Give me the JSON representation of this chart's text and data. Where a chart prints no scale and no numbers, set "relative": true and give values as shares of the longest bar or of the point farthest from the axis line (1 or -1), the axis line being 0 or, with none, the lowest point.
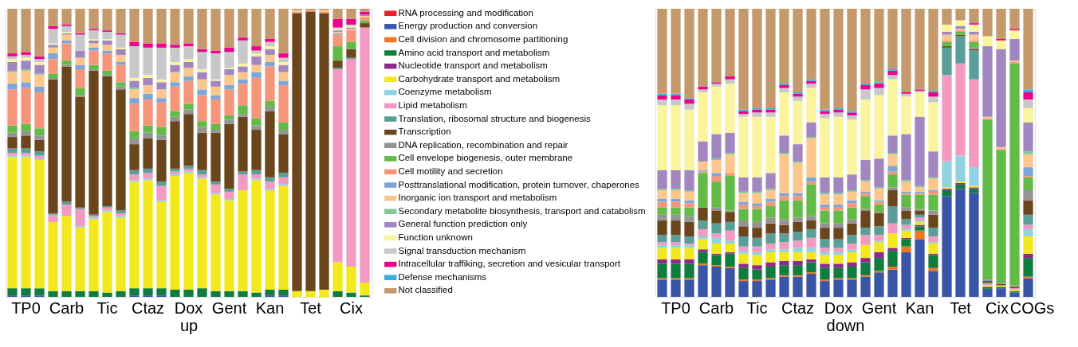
{
  "chart_data": [
    {
      "type": "bar",
      "stacked": true,
      "relative": true,
      "xlabel": "up",
      "legend": "right",
      "categories": [
        null,
        "TP0",
        null,
        null,
        "Carb",
        null,
        null,
        "Tic",
        null,
        null,
        "Ctaz",
        null,
        null,
        "Dox",
        null,
        null,
        "Gent",
        null,
        null,
        "Kan",
        null,
        null,
        "Tet",
        null,
        null,
        "Cix",
        null
      ],
      "series": [
        {
          "name": "RNA processing and modification",
          "color": "#e8202a",
          "values": [
            0,
            0,
            0,
            0,
            0,
            0,
            0,
            0,
            0,
            0,
            0,
            0,
            0,
            0,
            0,
            0,
            0,
            0,
            0,
            0,
            0,
            0,
            0,
            0,
            0,
            0,
            0
          ]
        },
        {
          "name": "Energy production and conversion",
          "color": "#3b55a6",
          "values": [
            0.005,
            0.005,
            0.005,
            0,
            0,
            0,
            0,
            0,
            0,
            0.005,
            0.005,
            0.005,
            0,
            0,
            0,
            0,
            0,
            0,
            0,
            0.005,
            0.005,
            0,
            0,
            0,
            0,
            0,
            0
          ]
        },
        {
          "name": "Cell division and chromosome partitioning",
          "color": "#f07622",
          "values": [
            0,
            0,
            0,
            0,
            0,
            0,
            0,
            0,
            0,
            0,
            0,
            0,
            0,
            0,
            0,
            0,
            0,
            0,
            0,
            0,
            0,
            0,
            0,
            0,
            0,
            0,
            0
          ]
        },
        {
          "name": "Amino acid transport and metabolism",
          "color": "#0f7d3e",
          "values": [
            0.025,
            0.025,
            0.025,
            0.02,
            0.02,
            0.02,
            0.02,
            0.015,
            0.02,
            0.025,
            0.025,
            0.025,
            0.025,
            0.025,
            0.03,
            0.02,
            0.02,
            0.02,
            0.015,
            0.02,
            0.02,
            0,
            0,
            0,
            0.02,
            0.015,
            0.005
          ]
        },
        {
          "name": "Nucleotide transport and metabolism",
          "color": "#8e2a8b",
          "values": [
            0,
            0,
            0,
            0,
            0,
            0,
            0,
            0,
            0,
            0,
            0,
            0,
            0,
            0,
            0,
            0,
            0,
            0,
            0,
            0,
            0,
            0,
            0,
            0,
            0,
            0,
            0
          ]
        },
        {
          "name": "Carbohydrate transport and metabolism",
          "color": "#f2e81d",
          "values": [
            0.455,
            0.455,
            0.445,
            0.24,
            0.26,
            0.22,
            0.25,
            0.28,
            0.255,
            0.37,
            0.375,
            0.3,
            0.395,
            0.405,
            0.38,
            0.335,
            0.315,
            0.35,
            0.39,
            0.345,
            0.36,
            0.02,
            0.02,
            0.025,
            0.1,
            0.09,
            0.045
          ]
        },
        {
          "name": "Coenzyme metabolism",
          "color": "#8dd3e0",
          "values": [
            0.005,
            0.005,
            0.005,
            0,
            0,
            0.005,
            0.005,
            0.005,
            0.005,
            0.005,
            0.005,
            0.005,
            0.005,
            0.005,
            0.005,
            0.005,
            0.005,
            0,
            0.005,
            0.005,
            0.005,
            0,
            0,
            0,
            0,
            0,
            0
          ]
        },
        {
          "name": "Lipid metabolism",
          "color": "#f39ac3",
          "values": [
            0.01,
            0.01,
            0.01,
            0.025,
            0.04,
            0.06,
            0.005,
            0.01,
            0.01,
            0.02,
            0.02,
            0.05,
            0.01,
            0.01,
            0.01,
            0.03,
            0.025,
            0.055,
            0.015,
            0.025,
            0.025,
            0,
            0,
            0,
            0.67,
            0.72,
            0.885
          ]
        },
        {
          "name": "Translation, ribosomal structure and biogenesis",
          "color": "#5a9e9a",
          "values": [
            0.015,
            0.015,
            0.015,
            0.005,
            0.01,
            0.005,
            0.005,
            0.005,
            0.01,
            0.015,
            0.015,
            0.015,
            0.01,
            0.01,
            0.015,
            0.01,
            0.01,
            0.01,
            0.015,
            0.015,
            0.015,
            0,
            0,
            0,
            0.005,
            0.005,
            0
          ]
        },
        {
          "name": "Transcription",
          "color": "#6b451b",
          "values": [
            0.04,
            0.045,
            0.04,
            0.465,
            0.47,
            0.385,
            0.5,
            0.45,
            0.42,
            0.09,
            0.105,
            0.145,
            0.165,
            0.18,
            0.13,
            0.17,
            0.225,
            0.19,
            0.14,
            0.23,
            0.135,
            0.965,
            0.97,
            0.96,
            0.025,
            0.03,
            0.015
          ]
        },
        {
          "name": "DNA replication, recombination and repair",
          "color": "#949494",
          "values": [
            0.015,
            0.015,
            0.015,
            0.005,
            0.005,
            0.005,
            0.005,
            0.005,
            0.01,
            0.02,
            0.02,
            0.015,
            0.015,
            0.015,
            0.02,
            0.01,
            0.015,
            0.01,
            0.015,
            0.015,
            0.015,
            0,
            0,
            0,
            0,
            0,
            0
          ]
        },
        {
          "name": "Cell envelope biogenesis, outer membrane",
          "color": "#63bb47",
          "values": [
            0.025,
            0.025,
            0.025,
            0.015,
            0.015,
            0.025,
            0.015,
            0.015,
            0.015,
            0.025,
            0.025,
            0.03,
            0.02,
            0.02,
            0.02,
            0.02,
            0.015,
            0.03,
            0.025,
            0.02,
            0.025,
            0,
            0,
            0,
            0.05,
            0.025,
            0.01
          ]
        },
        {
          "name": "Cell motility and secretion",
          "color": "#f5967a",
          "values": [
            0.125,
            0.125,
            0.125,
            0.05,
            0.06,
            0.065,
            0.05,
            0.06,
            0.06,
            0.095,
            0.09,
            0.085,
            0.085,
            0.08,
            0.09,
            0.085,
            0.09,
            0.075,
            0.14,
            0.12,
            0.13,
            0.005,
            0.005,
            0.005,
            0.04,
            0.04,
            0.01
          ]
        },
        {
          "name": "Posttranslational modification, protein turnover, chaperones",
          "color": "#7ca6da",
          "values": [
            0.02,
            0.02,
            0.02,
            0.02,
            0.01,
            0.015,
            0.01,
            0.01,
            0.01,
            0.02,
            0.02,
            0.015,
            0.015,
            0.015,
            0.02,
            0.015,
            0.015,
            0.015,
            0.02,
            0.015,
            0.015,
            0,
            0,
            0,
            0.005,
            0,
            0
          ]
        },
        {
          "name": "Inorganic ion transport and metabolism",
          "color": "#fdc68a",
          "values": [
            0.04,
            0.04,
            0.04,
            0.02,
            0.02,
            0.025,
            0.015,
            0.02,
            0.025,
            0.03,
            0.03,
            0.03,
            0.035,
            0.03,
            0.035,
            0.03,
            0.035,
            0.025,
            0.025,
            0.025,
            0.03,
            0.005,
            0,
            0.005,
            0.005,
            0.005,
            0.005
          ]
        },
        {
          "name": "Secondary metabolite biosynthesis, transport and catabolism",
          "color": "#82c99a",
          "values": [
            0.005,
            0.005,
            0.005,
            0,
            0,
            0,
            0,
            0,
            0,
            0.005,
            0,
            0,
            0,
            0,
            0,
            0,
            0,
            0,
            0,
            0,
            0,
            0,
            0,
            0,
            0,
            0,
            0
          ]
        },
        {
          "name": "General function prediction only",
          "color": "#a186c0",
          "values": [
            0.03,
            0.03,
            0.03,
            0.01,
            0.005,
            0.025,
            0.01,
            0.015,
            0.02,
            0.025,
            0.025,
            0.025,
            0.025,
            0.02,
            0.025,
            0.02,
            0.02,
            0.02,
            0.03,
            0.02,
            0.025,
            0,
            0,
            0,
            0.005,
            0.005,
            0.005
          ]
        },
        {
          "name": "Function unknown",
          "color": "#f9f49d",
          "values": [
            0.01,
            0.01,
            0.01,
            0.005,
            0.005,
            0,
            0.005,
            0.005,
            0.005,
            0.01,
            0.01,
            0.01,
            0.01,
            0.01,
            0.01,
            0.005,
            0.005,
            0.01,
            0.01,
            0.01,
            0.01,
            0,
            0,
            0,
            0.005,
            0.005,
            0
          ]
        },
        {
          "name": "Signal transduction mechanism",
          "color": "#c8c8ca",
          "values": [
            0.01,
            0.01,
            0.01,
            0.05,
            0.02,
            0.055,
            0.03,
            0.025,
            0.045,
            0.11,
            0.095,
            0.11,
            0.05,
            0.045,
            0.06,
            0.09,
            0.055,
            0.08,
            0.01,
            0.015,
            0.015,
            0,
            0,
            0,
            0.005,
            0.005,
            0
          ]
        },
        {
          "name": "Intracellular traffiking, secretion and vesicular transport",
          "color": "#ec008c",
          "values": [
            0.01,
            0.01,
            0.01,
            0.01,
            0.005,
            0.005,
            0.005,
            0.005,
            0.005,
            0.015,
            0.015,
            0.015,
            0.01,
            0.01,
            0.01,
            0.01,
            0.015,
            0.01,
            0.015,
            0.01,
            0.015,
            0,
            0,
            0,
            0.03,
            0.02,
            0.01
          ]
        },
        {
          "name": "Defense mechanisms",
          "color": "#3aaee2",
          "values": [
            0,
            0,
            0,
            0,
            0,
            0,
            0,
            0,
            0,
            0,
            0,
            0,
            0,
            0,
            0,
            0,
            0,
            0,
            0,
            0,
            0,
            0,
            0,
            0,
            0,
            0,
            0
          ]
        },
        {
          "name": "Not classified",
          "color": "#c49a6c",
          "values": [
            0.155,
            0.15,
            0.165,
            0.06,
            0.055,
            0.085,
            0.07,
            0.075,
            0.085,
            0.115,
            0.12,
            0.12,
            0.125,
            0.12,
            0.14,
            0.145,
            0.135,
            0.1,
            0.13,
            0.105,
            0.155,
            0.005,
            0.005,
            0.005,
            0.035,
            0.035,
            0.01
          ]
        }
      ]
    },
    {
      "type": "bar",
      "stacked": true,
      "relative": true,
      "xlabel": "down",
      "categories": [
        null,
        "TP0",
        null,
        null,
        "Carb",
        null,
        null,
        "Tic",
        null,
        null,
        "Ctaz",
        null,
        null,
        "Dox",
        null,
        null,
        "Gent",
        null,
        null,
        "Kan",
        null,
        null,
        "Tet",
        null,
        null,
        "Cix",
        null,
        "COGs"
      ],
      "series": [
        {
          "color": "#e8202a",
          "values": [
            0,
            0,
            0,
            0,
            0,
            0,
            0,
            0,
            0,
            0,
            0,
            0,
            0,
            0,
            0,
            0,
            0,
            0,
            0,
            0,
            0,
            0,
            0,
            0,
            0,
            0,
            0,
            0
          ]
        },
        {
          "color": "#3b55a6",
          "values": [
            0.06,
            0.06,
            0.06,
            0.11,
            0.105,
            0.1,
            0.055,
            0.055,
            0.06,
            0.07,
            0.07,
            0.08,
            0.055,
            0.06,
            0.06,
            0.07,
            0.085,
            0.095,
            0.155,
            0.2,
            0.09,
            0.35,
            0.375,
            0.36,
            0.025,
            0.03,
            0.015,
            0.065
          ]
        },
        {
          "color": "#f07622",
          "values": [
            0.005,
            0.005,
            0.005,
            0.005,
            0.005,
            0.005,
            0.005,
            0.005,
            0.005,
            0.005,
            0.005,
            0.005,
            0.005,
            0.005,
            0.005,
            0.005,
            0.005,
            0.01,
            0.02,
            0.03,
            0.01,
            0,
            0,
            0,
            0,
            0,
            0,
            0.005
          ]
        },
        {
          "color": "#0f7d3e",
          "values": [
            0.05,
            0.05,
            0.05,
            0.04,
            0.035,
            0.045,
            0.04,
            0.035,
            0.04,
            0.035,
            0.035,
            0.035,
            0.04,
            0.035,
            0.04,
            0.045,
            0.045,
            0.055,
            0.025,
            0.015,
            0.045,
            0.02,
            0.015,
            0.015,
            0.005,
            0.005,
            0.005,
            0.065
          ]
        },
        {
          "color": "#8e2a8b",
          "values": [
            0.015,
            0.015,
            0.015,
            0.01,
            0.005,
            0.005,
            0.015,
            0.015,
            0.015,
            0.015,
            0.015,
            0.01,
            0.015,
            0.015,
            0.015,
            0.015,
            0.02,
            0.01,
            0.005,
            0.005,
            0.005,
            0.005,
            0.005,
            0.005,
            0.005,
            0,
            0,
            0.015
          ]
        },
        {
          "color": "#f2e81d",
          "values": [
            0.04,
            0.04,
            0.04,
            0.035,
            0.035,
            0.03,
            0.035,
            0.035,
            0.035,
            0.03,
            0.03,
            0.025,
            0.03,
            0.03,
            0.035,
            0.045,
            0.035,
            0.05,
            0.025,
            0.01,
            0.035,
            0.005,
            0.005,
            0.005,
            0.005,
            0.005,
            0.005,
            0.06
          ]
        },
        {
          "color": "#8dd3e0",
          "values": [
            0.01,
            0.01,
            0.01,
            0.01,
            0.02,
            0.01,
            0.01,
            0.01,
            0.01,
            0.01,
            0.015,
            0.015,
            0.01,
            0.01,
            0.01,
            0,
            0.005,
            0,
            0.005,
            0.005,
            0.005,
            0.09,
            0.09,
            0.065,
            0,
            0,
            0,
            0.025
          ]
        },
        {
          "color": "#f39ac3",
          "values": [
            0.01,
            0.01,
            0.005,
            0.025,
            0.015,
            0.035,
            0.015,
            0.02,
            0.02,
            0.025,
            0.025,
            0.035,
            0.015,
            0.015,
            0.02,
            0.035,
            0.02,
            0.035,
            0.015,
            0.01,
            0.02,
            0.3,
            0.32,
            0.305,
            0.005,
            0,
            0.005,
            0.015
          ]
        },
        {
          "color": "#5a9e9a",
          "values": [
            0.025,
            0.025,
            0.025,
            0.03,
            0.035,
            0.03,
            0.035,
            0.03,
            0.035,
            0.03,
            0.03,
            0.03,
            0.03,
            0.03,
            0.03,
            0.025,
            0.03,
            0.06,
            0.02,
            0.01,
            0.03,
            0.095,
            0.095,
            0.1,
            0.005,
            0,
            0,
            0.035
          ]
        },
        {
          "color": "#6b451b",
          "values": [
            0.05,
            0.05,
            0.05,
            0.045,
            0.045,
            0.035,
            0.035,
            0.035,
            0.035,
            0.03,
            0.035,
            0.03,
            0.04,
            0.04,
            0.04,
            0.06,
            0.045,
            0.055,
            0.03,
            0.015,
            0.045,
            0.005,
            0.005,
            0.005,
            0.005,
            0.005,
            0.005,
            0.05
          ]
        },
        {
          "color": "#949494",
          "values": [
            0.02,
            0.02,
            0.02,
            0,
            0.01,
            0.005,
            0.02,
            0.02,
            0.02,
            0.02,
            0.015,
            0.015,
            0.015,
            0.015,
            0.015,
            0.005,
            0.005,
            0.01,
            0.01,
            0.005,
            0.015,
            0,
            0,
            0.005,
            0.005,
            0.005,
            0.005,
            0.035
          ]
        },
        {
          "color": "#63bb47",
          "values": [
            0.025,
            0.025,
            0.03,
            0.12,
            0.09,
            0.12,
            0.04,
            0.045,
            0.04,
            0.065,
            0.06,
            0.11,
            0.045,
            0.045,
            0.04,
            0.045,
            0.025,
            0.045,
            0.045,
            0.05,
            0.055,
            0.015,
            0.01,
            0.02,
            0.555,
            0.46,
            0.77,
            0.045
          ]
        },
        {
          "color": "#f5967a",
          "values": [
            0.02,
            0.02,
            0.015,
            0.005,
            0.02,
            0.01,
            0.015,
            0.01,
            0.015,
            0.015,
            0.015,
            0.01,
            0.01,
            0.01,
            0.015,
            0.01,
            0.01,
            0.01,
            0.005,
            0.005,
            0.01,
            0.005,
            0.005,
            0.005,
            0.005,
            0.005,
            0.005,
            0.005
          ]
        },
        {
          "color": "#7ca6da",
          "values": [
            0.01,
            0.01,
            0.01,
            0.005,
            0.01,
            0,
            0.01,
            0.01,
            0.01,
            0.01,
            0.01,
            0.015,
            0.01,
            0.01,
            0.01,
            0.005,
            0.005,
            0.02,
            0.005,
            0.005,
            0.005,
            0,
            0,
            0,
            0,
            0,
            0,
            0.03
          ]
        },
        {
          "color": "#fdc68a",
          "values": [
            0.03,
            0.03,
            0.03,
            0.03,
            0.045,
            0.065,
            0.03,
            0.035,
            0.03,
            0.135,
            0.105,
            0.135,
            0.035,
            0.035,
            0.03,
            0.035,
            0.04,
            0.04,
            0.035,
            0.015,
            0.04,
            0.02,
            0.005,
            0.02,
            0.005,
            0.005,
            0.005,
            0.045
          ]
        },
        {
          "color": "#82c99a",
          "values": [
            0.005,
            0.005,
            0.005,
            0,
            0.005,
            0.005,
            0.005,
            0.005,
            0.005,
            0.005,
            0.005,
            0.005,
            0.005,
            0.005,
            0.005,
            0.005,
            0.005,
            0.005,
            0.005,
            0.005,
            0.005,
            0,
            0,
            0,
            0,
            0,
            0,
            0.01
          ]
        },
        {
          "color": "#a186c0",
          "values": [
            0.065,
            0.065,
            0.07,
            0.07,
            0.085,
            0.07,
            0.05,
            0.05,
            0.055,
            0.06,
            0.06,
            0.05,
            0.055,
            0.055,
            0.055,
            0.07,
            0.1,
            0.06,
            0.16,
            0.24,
            0.09,
            0.01,
            0.01,
            0.01,
            0.245,
            0.34,
            0.075,
            0.1
          ]
        },
        {
          "color": "#f9f49d",
          "values": [
            0.225,
            0.225,
            0.21,
            0.17,
            0.165,
            0.17,
            0.21,
            0.21,
            0.195,
            0.15,
            0.15,
            0.12,
            0.205,
            0.21,
            0.19,
            0.21,
            0.22,
            0.195,
            0.13,
            0.085,
            0.17,
            0.025,
            0.02,
            0.025,
            0.035,
            0.03,
            0.03,
            0.05
          ]
        },
        {
          "color": "#c8c8ca",
          "values": [
            0.02,
            0.02,
            0.02,
            0.01,
            0.01,
            0.015,
            0.01,
            0.015,
            0.015,
            0.015,
            0.015,
            0.015,
            0.015,
            0.015,
            0.015,
            0.035,
            0.025,
            0.015,
            0.01,
            0.005,
            0.02,
            0,
            0,
            0,
            0,
            0,
            0,
            0.03
          ]
        },
        {
          "color": "#ec008c",
          "values": [
            0.015,
            0.015,
            0.015,
            0.01,
            0.005,
            0.01,
            0.01,
            0.01,
            0.01,
            0.01,
            0.01,
            0.01,
            0.01,
            0.01,
            0.01,
            0.015,
            0.015,
            0.015,
            0.005,
            0.005,
            0.015,
            0,
            0,
            0.005,
            0,
            0.005,
            0.005,
            0.025
          ]
        },
        {
          "color": "#3aaee2",
          "values": [
            0.005,
            0.005,
            0.005,
            0,
            0,
            0,
            0.005,
            0.005,
            0.005,
            0.005,
            0.005,
            0.005,
            0.005,
            0.005,
            0.005,
            0.005,
            0.005,
            0.005,
            0,
            0,
            0.005,
            0,
            0,
            0,
            0,
            0,
            0,
            0.01
          ]
        },
        {
          "color": "#c49a6c",
          "values": [
            0.295,
            0.295,
            0.31,
            0.27,
            0.255,
            0.235,
            0.35,
            0.345,
            0.345,
            0.26,
            0.29,
            0.245,
            0.35,
            0.345,
            0.355,
            0.26,
            0.255,
            0.21,
            0.29,
            0.28,
            0.285,
            0.055,
            0.04,
            0.05,
            0.095,
            0.105,
            0.07,
            0.28
          ]
        }
      ]
    }
  ]
}
